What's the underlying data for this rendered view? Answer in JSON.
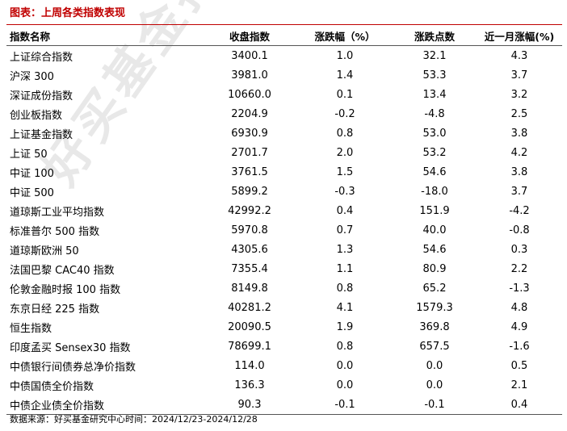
{
  "title": "图表：上周各类指数表现",
  "columns": [
    "指数名称",
    "收盘指数",
    "涨跌幅（%）",
    "涨跌点数",
    "近一月涨幅(%)"
  ],
  "rows": [
    [
      "上证综合指数",
      "3400.1",
      "1.0",
      "32.1",
      "4.3"
    ],
    [
      "沪深 300",
      "3981.0",
      "1.4",
      "53.3",
      "3.7"
    ],
    [
      "深证成份指数",
      "10660.0",
      "0.1",
      "13.4",
      "3.2"
    ],
    [
      "创业板指数",
      "2204.9",
      "-0.2",
      "-4.8",
      "2.5"
    ],
    [
      "上证基金指数",
      "6930.9",
      "0.8",
      "53.0",
      "3.8"
    ],
    [
      "上证 50",
      "2701.7",
      "2.0",
      "53.2",
      "4.2"
    ],
    [
      "中证 100",
      "3761.5",
      "1.5",
      "54.6",
      "3.8"
    ],
    [
      "中证 500",
      "5899.2",
      "-0.3",
      "-18.0",
      "3.7"
    ],
    [
      "道琼斯工业平均指数",
      "42992.2",
      "0.4",
      "151.9",
      "-4.2"
    ],
    [
      "标准普尔 500 指数",
      "5970.8",
      "0.7",
      "40.0",
      "-0.8"
    ],
    [
      "道琼斯欧洲 50",
      "4305.6",
      "1.3",
      "54.6",
      "0.3"
    ],
    [
      "法国巴黎 CAC40 指数",
      "7355.4",
      "1.1",
      "80.9",
      "2.2"
    ],
    [
      "伦敦金融时报 100 指数",
      "8149.8",
      "0.8",
      "65.2",
      "-1.3"
    ],
    [
      "东京日经 225 指数",
      "40281.2",
      "4.1",
      "1579.3",
      "4.8"
    ],
    [
      "恒生指数",
      "20090.5",
      "1.9",
      "369.8",
      "4.9"
    ],
    [
      "印度孟买 Sensex30 指数",
      "78699.1",
      "0.8",
      "657.5",
      "-1.6"
    ],
    [
      "中债银行间债券总净价指数",
      "114.0",
      "0.0",
      "0.0",
      "0.5"
    ],
    [
      "中债国债全价指数",
      "136.3",
      "0.0",
      "0.0",
      "2.1"
    ],
    [
      "中债企业债全价指数",
      "90.3",
      "-0.1",
      "-0.1",
      "0.4"
    ]
  ],
  "source": "数据来源：好买基金研究中心时间：2024/12/23-2024/12/28",
  "watermark": "好买基金指数报"
}
